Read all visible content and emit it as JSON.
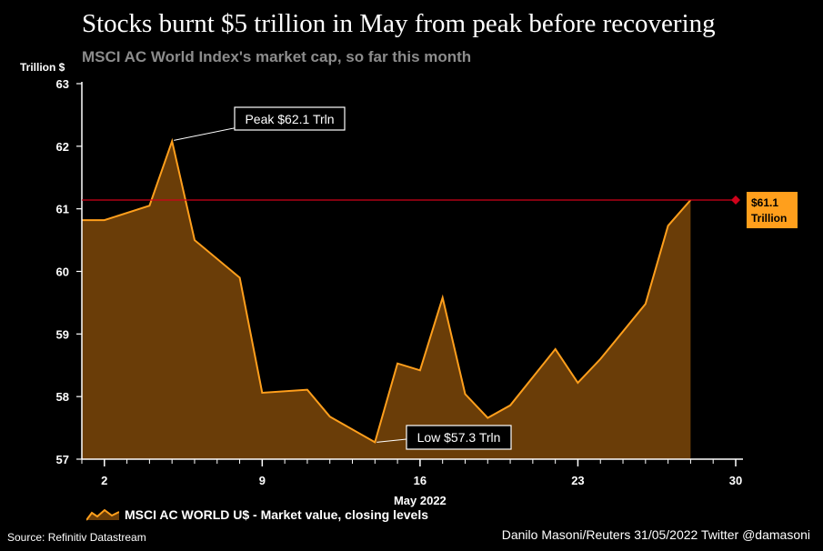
{
  "chart_data": {
    "type": "area",
    "title": "Stocks burnt $5 trillion in May from peak before recovering",
    "subtitle": "MSCI AC World Index's market cap, so far this month",
    "ylabel": "Trillion $",
    "xlabel": "May 2022",
    "ylim": [
      57,
      63
    ],
    "yticks": [
      57,
      58,
      59,
      60,
      61,
      62,
      63
    ],
    "xlim": [
      1,
      30
    ],
    "xticks": [
      2,
      9,
      16,
      23,
      30
    ],
    "x": [
      1,
      2,
      3,
      4,
      5,
      6,
      7,
      8,
      9,
      10,
      11,
      12,
      13,
      14,
      15,
      16,
      17,
      18,
      19,
      20,
      21,
      22,
      23,
      24,
      25,
      26,
      27,
      28,
      29,
      30
    ],
    "series": [
      {
        "name": "MSCI AC WORLD U$ - Market value, closing levels",
        "values": [
          60.82,
          60.82,
          61.05,
          62.08,
          60.5,
          59.9,
          58.06,
          58.11,
          57.68,
          57.27,
          58.53,
          58.42,
          59.58,
          58.04,
          57.66,
          57.86,
          58.76,
          58.22,
          58.6,
          59.48,
          60.73,
          61.14
        ],
        "x": [
          1,
          2,
          4,
          5,
          6,
          8,
          9,
          11,
          12,
          14,
          15,
          16,
          17,
          18,
          19,
          20,
          22,
          23,
          24,
          26,
          27,
          28
        ],
        "color": "#ff9f1c",
        "fill": "#6a3d08"
      }
    ],
    "annotations": {
      "peak": {
        "text": "Peak $62.1 Trln",
        "x": 5,
        "value": 62.08
      },
      "low": {
        "text": "Low $57.3 Trln",
        "x": 14,
        "value": 57.27
      },
      "end": {
        "line1": "$61.1",
        "line2": "Trillion",
        "value": 61.14
      }
    },
    "reference_line": {
      "value": 61.14,
      "color": "#d0021b"
    }
  },
  "legend": {
    "label": "MSCI AC WORLD U$ - Market value, closing levels"
  },
  "footer": {
    "source": "Source: Refinitiv Datastream",
    "credit": "Danilo Masoni/Reuters 31/05/2022 Twitter @damasoni"
  }
}
